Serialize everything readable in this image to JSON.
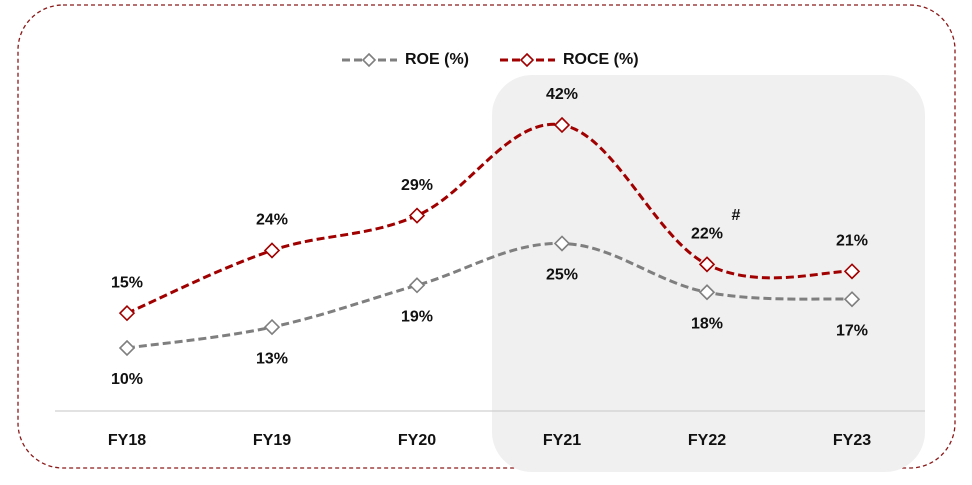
{
  "chart_data": {
    "type": "line",
    "categories": [
      "FY18",
      "FY19",
      "FY20",
      "FY21",
      "FY22",
      "FY23"
    ],
    "series": [
      {
        "name": "ROE (%)",
        "color": "#7f7f7f",
        "values": [
          10,
          13,
          19,
          25,
          18,
          17
        ],
        "value_labels": [
          "10%",
          "13%",
          "19%",
          "25%",
          "18%",
          "17%"
        ]
      },
      {
        "name": "ROCE (%)",
        "color": "#a00000",
        "values": [
          15,
          24,
          29,
          42,
          22,
          21
        ],
        "value_labels": [
          "15%",
          "24%",
          "29%",
          "42%",
          "22%",
          "21%"
        ]
      }
    ],
    "annotation": "#",
    "legend": "top"
  }
}
